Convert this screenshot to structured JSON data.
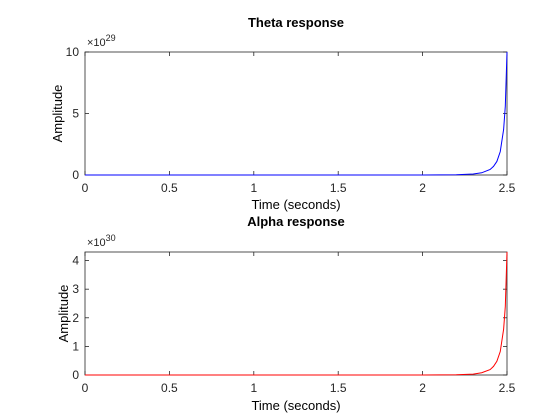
{
  "chart_data": [
    {
      "type": "line",
      "title": "Theta response",
      "xlabel": "Time (seconds)",
      "ylabel": "Amplitude",
      "xlim": [
        0,
        2.5
      ],
      "ylim": [
        0,
        10
      ],
      "exponent_label_base": "×10",
      "exponent_label_power": "29",
      "xticks": [
        "0",
        "0.5",
        "1",
        "1.5",
        "2",
        "2.5"
      ],
      "yticks": [
        "0",
        "5",
        "10"
      ],
      "grid": false,
      "series": [
        {
          "color": "#0000ff",
          "x": [
            0,
            0.5,
            1.0,
            1.5,
            2.0,
            2.2,
            2.3,
            2.35,
            2.4,
            2.42,
            2.44,
            2.46,
            2.48,
            2.49,
            2.5
          ],
          "y": [
            0,
            0,
            0,
            0,
            0,
            0.02,
            0.08,
            0.18,
            0.45,
            0.7,
            1.1,
            1.9,
            3.7,
            5.6,
            10
          ]
        }
      ]
    },
    {
      "type": "line",
      "title": "Alpha response",
      "xlabel": "Time (seconds)",
      "ylabel": "Amplitude",
      "xlim": [
        0,
        2.5
      ],
      "ylim": [
        0,
        4.3
      ],
      "exponent_label_base": "×10",
      "exponent_label_power": "30",
      "xticks": [
        "0",
        "0.5",
        "1",
        "1.5",
        "2",
        "2.5"
      ],
      "yticks": [
        "0",
        "1",
        "2",
        "3",
        "4"
      ],
      "grid": false,
      "series": [
        {
          "color": "#ff0000",
          "x": [
            0,
            0.5,
            1.0,
            1.5,
            2.0,
            2.2,
            2.3,
            2.35,
            2.4,
            2.42,
            2.44,
            2.46,
            2.48,
            2.49,
            2.5
          ],
          "y": [
            0,
            0,
            0,
            0,
            0,
            0.008,
            0.03,
            0.08,
            0.19,
            0.3,
            0.48,
            0.82,
            1.6,
            2.4,
            4.3
          ]
        }
      ]
    }
  ]
}
